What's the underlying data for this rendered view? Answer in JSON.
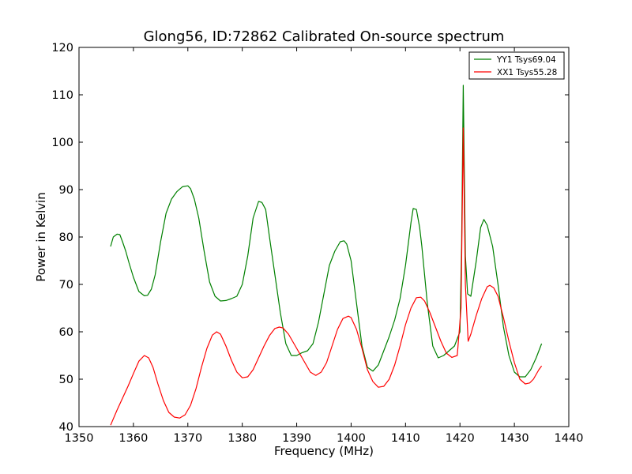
{
  "chart_data": {
    "type": "line",
    "title": "Glong56, ID:72862 Calibrated On-source spectrum",
    "xlabel": "Frequency (MHz)",
    "ylabel": "Power in Kelvin",
    "xlim": [
      1350,
      1440
    ],
    "ylim": [
      40,
      120
    ],
    "xticks": [
      1350,
      1360,
      1370,
      1380,
      1390,
      1400,
      1410,
      1420,
      1430,
      1440
    ],
    "yticks": [
      40,
      50,
      60,
      70,
      80,
      90,
      100,
      110,
      120
    ],
    "grid": false,
    "legend_position": "top-right",
    "series": [
      {
        "name": "YY1 Tsys69.04",
        "color": "#008000",
        "x": [
          1355.8,
          1356.3,
          1357.0,
          1357.5,
          1358.0,
          1358.6,
          1359.2,
          1360.0,
          1361.0,
          1362.0,
          1362.6,
          1363.3,
          1364.0,
          1365.0,
          1366.0,
          1367.0,
          1368.0,
          1369.0,
          1370.0,
          1370.5,
          1371.2,
          1372.0,
          1373.0,
          1374.0,
          1375.0,
          1376.0,
          1377.0,
          1378.0,
          1379.0,
          1380.0,
          1381.0,
          1382.0,
          1383.0,
          1383.6,
          1384.3,
          1385.0,
          1386.0,
          1387.0,
          1388.0,
          1389.0,
          1390.0,
          1391.0,
          1392.0,
          1393.0,
          1394.0,
          1395.0,
          1396.0,
          1397.0,
          1398.0,
          1398.7,
          1399.2,
          1400.0,
          1401.0,
          1402.0,
          1403.0,
          1404.0,
          1405.0,
          1406.0,
          1407.0,
          1408.0,
          1409.0,
          1410.0,
          1411.0,
          1411.4,
          1412.0,
          1412.6,
          1413.0,
          1414.0,
          1415.0,
          1416.0,
          1417.0,
          1418.0,
          1419.0,
          1420.0,
          1420.3,
          1420.6,
          1421.0,
          1421.4,
          1422.0,
          1423.0,
          1423.8,
          1424.4,
          1425.0,
          1426.0,
          1427.0,
          1428.0,
          1429.0,
          1430.0,
          1431.0,
          1432.0,
          1433.0,
          1434.0,
          1435.0
        ],
        "values": [
          78.0,
          80.0,
          80.6,
          80.5,
          79.0,
          77.0,
          74.5,
          71.5,
          68.5,
          67.6,
          67.7,
          69.0,
          72.0,
          79.0,
          85.0,
          88.0,
          89.6,
          90.6,
          90.8,
          90.2,
          88.0,
          84.0,
          77.0,
          70.5,
          67.5,
          66.5,
          66.6,
          67.0,
          67.5,
          70.0,
          76.0,
          84.0,
          87.5,
          87.3,
          85.8,
          80.0,
          72.0,
          64.0,
          57.5,
          55.0,
          55.0,
          55.6,
          56.0,
          57.5,
          62.0,
          68.0,
          74.0,
          77.0,
          79.0,
          79.2,
          78.5,
          75.0,
          66.0,
          57.0,
          52.5,
          51.7,
          53.0,
          56.0,
          59.0,
          62.5,
          67.0,
          74.0,
          83.0,
          86.0,
          85.8,
          82.0,
          78.0,
          66.0,
          57.0,
          54.5,
          55.0,
          56.0,
          57.0,
          60.0,
          78.0,
          112.0,
          76.0,
          68.0,
          67.5,
          75.0,
          82.0,
          83.7,
          82.5,
          78.0,
          70.0,
          61.0,
          55.0,
          51.5,
          50.5,
          50.5,
          52.0,
          54.5,
          57.5
        ]
      },
      {
        "name": "XX1 Tsys55.28",
        "color": "#ff0000",
        "x": [
          1355.8,
          1357.0,
          1358.0,
          1359.0,
          1360.0,
          1361.0,
          1362.0,
          1362.8,
          1363.6,
          1364.5,
          1365.5,
          1366.5,
          1367.5,
          1368.5,
          1369.5,
          1370.5,
          1371.5,
          1372.5,
          1373.5,
          1374.5,
          1375.3,
          1376.0,
          1377.0,
          1378.0,
          1379.0,
          1380.0,
          1381.0,
          1382.0,
          1383.0,
          1384.0,
          1385.0,
          1386.0,
          1386.8,
          1387.5,
          1388.5,
          1389.5,
          1390.5,
          1391.5,
          1392.5,
          1393.5,
          1394.5,
          1395.5,
          1396.5,
          1397.5,
          1398.5,
          1399.5,
          1400.0,
          1401.0,
          1402.0,
          1403.0,
          1404.0,
          1405.0,
          1406.0,
          1407.0,
          1408.0,
          1409.0,
          1410.0,
          1411.0,
          1412.0,
          1412.8,
          1413.5,
          1414.5,
          1415.5,
          1416.5,
          1417.5,
          1418.5,
          1419.5,
          1420.2,
          1420.6,
          1421.0,
          1421.5,
          1422.0,
          1423.0,
          1424.0,
          1425.0,
          1425.5,
          1426.2,
          1427.0,
          1428.0,
          1429.0,
          1430.0,
          1431.0,
          1432.0,
          1432.8,
          1433.5,
          1434.5,
          1435.0
        ],
        "values": [
          40.3,
          43.5,
          46.0,
          48.5,
          51.2,
          53.8,
          55.0,
          54.5,
          52.5,
          49.0,
          45.5,
          43.0,
          42.0,
          41.8,
          42.5,
          44.5,
          48.0,
          52.5,
          56.5,
          59.3,
          60.0,
          59.5,
          57.0,
          54.0,
          51.5,
          50.3,
          50.5,
          52.0,
          54.5,
          57.0,
          59.2,
          60.7,
          61.0,
          60.8,
          59.5,
          57.5,
          55.5,
          53.5,
          51.5,
          50.8,
          51.5,
          53.5,
          57.0,
          60.5,
          62.8,
          63.3,
          63.0,
          60.5,
          56.5,
          52.0,
          49.5,
          48.3,
          48.5,
          50.0,
          53.0,
          57.0,
          61.5,
          65.0,
          67.2,
          67.3,
          66.5,
          64.0,
          61.0,
          58.0,
          55.5,
          54.6,
          55.0,
          65.0,
          103.0,
          70.0,
          58.0,
          59.5,
          63.5,
          67.0,
          69.5,
          69.8,
          69.3,
          67.5,
          63.0,
          58.0,
          53.5,
          50.0,
          49.0,
          49.2,
          50.0,
          52.0,
          52.8
        ]
      }
    ]
  }
}
